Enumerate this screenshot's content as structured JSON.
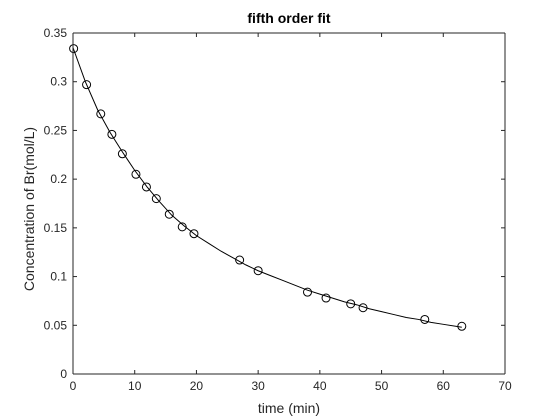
{
  "chart_data": {
    "type": "scatter",
    "title": "fifth order fit",
    "xlabel": "time (min)",
    "ylabel": "Concentration of Br(mol/L)",
    "xlim": [
      0,
      70
    ],
    "ylim": [
      0,
      0.35
    ],
    "xticks": [
      0,
      10,
      20,
      30,
      40,
      50,
      60,
      70
    ],
    "xtick_labels": [
      "0",
      "10",
      "20",
      "30",
      "40",
      "50",
      "60",
      "70"
    ],
    "yticks": [
      0,
      0.05,
      0.1,
      0.15,
      0.2,
      0.25,
      0.3,
      0.35
    ],
    "ytick_labels": [
      "0",
      "0.05",
      "0.1",
      "0.15",
      "0.2",
      "0.25",
      "0.3",
      "0.35"
    ],
    "grid": false,
    "legend": "none",
    "colors": {
      "axis": "#262626",
      "marker": "#000000",
      "fit_line": "#000000",
      "background": "#ffffff"
    },
    "series": [
      {
        "style": "markers-open-circle",
        "x": [
          0.1,
          2.2,
          4.5,
          6.3,
          8.0,
          10.2,
          11.9,
          13.5,
          15.6,
          17.7,
          19.6,
          27.0,
          30.0,
          38.0,
          41.0,
          45.0,
          47.0,
          57.0,
          63.0
        ],
        "y": [
          0.334,
          0.297,
          0.267,
          0.246,
          0.226,
          0.205,
          0.192,
          0.18,
          0.164,
          0.151,
          0.144,
          0.117,
          0.106,
          0.084,
          0.078,
          0.072,
          0.068,
          0.056,
          0.049
        ]
      },
      {
        "style": "line-fit",
        "x": [
          0,
          2,
          4,
          6,
          8,
          10,
          12,
          14,
          16,
          18,
          20,
          22,
          24,
          26,
          28,
          30,
          32,
          34,
          36,
          38,
          40,
          42,
          44,
          46,
          48,
          50,
          52,
          54,
          56,
          58,
          60,
          62,
          63
        ],
        "y": [
          0.335,
          0.3,
          0.271,
          0.248,
          0.228,
          0.209,
          0.192,
          0.177,
          0.163,
          0.152,
          0.142,
          0.134,
          0.126,
          0.119,
          0.112,
          0.106,
          0.101,
          0.096,
          0.091,
          0.086,
          0.082,
          0.078,
          0.074,
          0.071,
          0.067,
          0.064,
          0.061,
          0.058,
          0.056,
          0.053,
          0.051,
          0.049,
          0.048
        ]
      }
    ]
  }
}
